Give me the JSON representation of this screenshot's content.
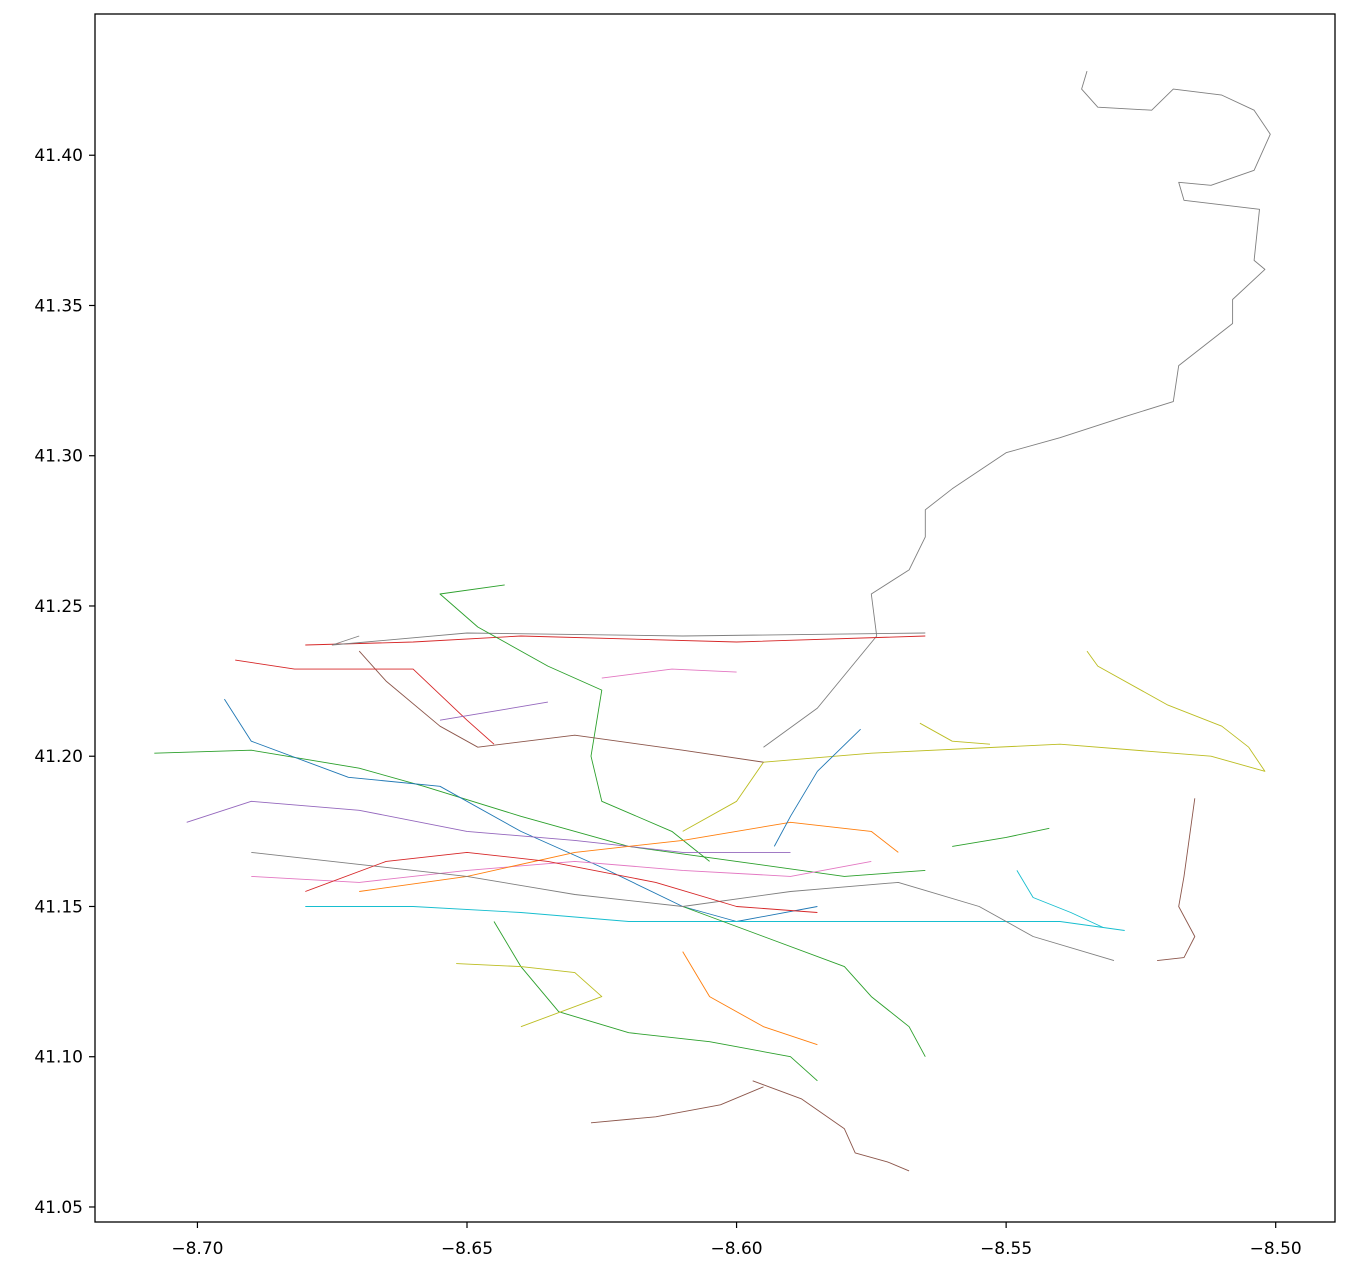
{
  "chart_data": {
    "type": "line",
    "title": "",
    "xlabel": "",
    "ylabel": "",
    "xlim": [
      -8.719,
      -8.489
    ],
    "ylim": [
      41.045,
      41.447
    ],
    "grid": false,
    "legend": "none",
    "x_ticks": [
      {
        "value": -8.7,
        "label": "−8.70"
      },
      {
        "value": -8.65,
        "label": "−8.65"
      },
      {
        "value": -8.6,
        "label": "−8.60"
      },
      {
        "value": -8.55,
        "label": "−8.55"
      },
      {
        "value": -8.5,
        "label": "−8.50"
      }
    ],
    "y_ticks": [
      {
        "value": 41.05,
        "label": "41.05"
      },
      {
        "value": 41.1,
        "label": "41.10"
      },
      {
        "value": 41.15,
        "label": "41.15"
      },
      {
        "value": 41.2,
        "label": "41.20"
      },
      {
        "value": 41.25,
        "label": "41.25"
      },
      {
        "value": 41.3,
        "label": "41.30"
      },
      {
        "value": 41.35,
        "label": "41.35"
      },
      {
        "value": 41.4,
        "label": "41.40"
      }
    ],
    "series": [
      {
        "color": "#7f7f7f",
        "points": [
          [
            -8.535,
            41.428
          ],
          [
            -8.536,
            41.422
          ],
          [
            -8.533,
            41.416
          ],
          [
            -8.523,
            41.415
          ],
          [
            -8.519,
            41.422
          ],
          [
            -8.51,
            41.42
          ],
          [
            -8.504,
            41.415
          ],
          [
            -8.501,
            41.407
          ],
          [
            -8.504,
            41.395
          ],
          [
            -8.512,
            41.39
          ],
          [
            -8.518,
            41.391
          ],
          [
            -8.517,
            41.385
          ],
          [
            -8.503,
            41.382
          ],
          [
            -8.504,
            41.365
          ],
          [
            -8.502,
            41.362
          ],
          [
            -8.508,
            41.352
          ],
          [
            -8.508,
            41.344
          ],
          [
            -8.518,
            41.33
          ],
          [
            -8.519,
            41.318
          ],
          [
            -8.528,
            41.313
          ],
          [
            -8.54,
            41.306
          ],
          [
            -8.55,
            41.301
          ],
          [
            -8.56,
            41.289
          ],
          [
            -8.565,
            41.282
          ],
          [
            -8.565,
            41.273
          ],
          [
            -8.568,
            41.262
          ],
          [
            -8.575,
            41.254
          ],
          [
            -8.574,
            41.24
          ],
          [
            -8.585,
            41.216
          ],
          [
            -8.595,
            41.203
          ]
        ]
      },
      {
        "color": "#8c564b",
        "points": [
          [
            -8.515,
            41.186
          ],
          [
            -8.516,
            41.173
          ],
          [
            -8.517,
            41.16
          ],
          [
            -8.518,
            41.15
          ],
          [
            -8.515,
            41.14
          ],
          [
            -8.517,
            41.133
          ],
          [
            -8.522,
            41.132
          ]
        ]
      },
      {
        "color": "#bcbd22",
        "points": [
          [
            -8.535,
            41.235
          ],
          [
            -8.533,
            41.23
          ],
          [
            -8.52,
            41.217
          ],
          [
            -8.51,
            41.21
          ],
          [
            -8.505,
            41.203
          ],
          [
            -8.502,
            41.195
          ],
          [
            -8.512,
            41.2
          ],
          [
            -8.54,
            41.204
          ],
          [
            -8.575,
            41.201
          ],
          [
            -8.595,
            41.198
          ],
          [
            -8.6,
            41.185
          ],
          [
            -8.61,
            41.175
          ]
        ]
      },
      {
        "color": "#d62728",
        "points": [
          [
            -8.565,
            41.24
          ],
          [
            -8.6,
            41.238
          ],
          [
            -8.64,
            41.24
          ],
          [
            -8.66,
            41.238
          ],
          [
            -8.68,
            41.237
          ]
        ]
      },
      {
        "color": "#7f7f7f",
        "points": [
          [
            -8.565,
            41.241
          ],
          [
            -8.61,
            41.24
          ],
          [
            -8.65,
            41.241
          ],
          [
            -8.675,
            41.237
          ],
          [
            -8.67,
            41.24
          ]
        ]
      },
      {
        "color": "#2ca02c",
        "points": [
          [
            -8.643,
            41.257
          ],
          [
            -8.655,
            41.254
          ],
          [
            -8.648,
            41.243
          ],
          [
            -8.635,
            41.23
          ],
          [
            -8.625,
            41.222
          ],
          [
            -8.627,
            41.2
          ],
          [
            -8.625,
            41.185
          ],
          [
            -8.612,
            41.175
          ],
          [
            -8.605,
            41.165
          ]
        ]
      },
      {
        "color": "#8c564b",
        "points": [
          [
            -8.595,
            41.198
          ],
          [
            -8.61,
            41.202
          ],
          [
            -8.63,
            41.207
          ],
          [
            -8.648,
            41.203
          ],
          [
            -8.655,
            41.21
          ],
          [
            -8.665,
            41.225
          ],
          [
            -8.67,
            41.235
          ]
        ]
      },
      {
        "color": "#2ca02c",
        "points": [
          [
            -8.708,
            41.201
          ],
          [
            -8.69,
            41.202
          ],
          [
            -8.67,
            41.196
          ],
          [
            -8.658,
            41.19
          ],
          [
            -8.64,
            41.18
          ],
          [
            -8.62,
            41.17
          ],
          [
            -8.6,
            41.165
          ],
          [
            -8.58,
            41.16
          ],
          [
            -8.565,
            41.162
          ]
        ]
      },
      {
        "color": "#1f77b4",
        "points": [
          [
            -8.695,
            41.219
          ],
          [
            -8.69,
            41.205
          ],
          [
            -8.672,
            41.193
          ],
          [
            -8.655,
            41.19
          ],
          [
            -8.64,
            41.175
          ],
          [
            -8.625,
            41.163
          ],
          [
            -8.61,
            41.15
          ],
          [
            -8.6,
            41.145
          ],
          [
            -8.585,
            41.15
          ]
        ]
      },
      {
        "color": "#d62728",
        "points": [
          [
            -8.693,
            41.232
          ],
          [
            -8.682,
            41.229
          ],
          [
            -8.66,
            41.229
          ],
          [
            -8.65,
            41.212
          ],
          [
            -8.645,
            41.204
          ]
        ]
      },
      {
        "color": "#9467bd",
        "points": [
          [
            -8.702,
            41.178
          ],
          [
            -8.69,
            41.185
          ],
          [
            -8.67,
            41.182
          ],
          [
            -8.65,
            41.175
          ],
          [
            -8.63,
            41.172
          ],
          [
            -8.61,
            41.168
          ],
          [
            -8.59,
            41.168
          ]
        ]
      },
      {
        "color": "#e377c2",
        "points": [
          [
            -8.69,
            41.16
          ],
          [
            -8.67,
            41.158
          ],
          [
            -8.65,
            41.162
          ],
          [
            -8.63,
            41.165
          ],
          [
            -8.61,
            41.162
          ],
          [
            -8.59,
            41.16
          ],
          [
            -8.575,
            41.165
          ]
        ]
      },
      {
        "color": "#17becf",
        "points": [
          [
            -8.68,
            41.15
          ],
          [
            -8.66,
            41.15
          ],
          [
            -8.64,
            41.148
          ],
          [
            -8.62,
            41.145
          ],
          [
            -8.6,
            41.145
          ],
          [
            -8.58,
            41.145
          ],
          [
            -8.56,
            41.145
          ],
          [
            -8.54,
            41.145
          ],
          [
            -8.528,
            41.142
          ]
        ]
      },
      {
        "color": "#ff7f0e",
        "points": [
          [
            -8.67,
            41.155
          ],
          [
            -8.65,
            41.16
          ],
          [
            -8.63,
            41.168
          ],
          [
            -8.61,
            41.172
          ],
          [
            -8.59,
            41.178
          ],
          [
            -8.575,
            41.175
          ],
          [
            -8.57,
            41.168
          ]
        ]
      },
      {
        "color": "#2ca02c",
        "points": [
          [
            -8.645,
            41.145
          ],
          [
            -8.64,
            41.13
          ],
          [
            -8.633,
            41.115
          ],
          [
            -8.62,
            41.108
          ],
          [
            -8.605,
            41.105
          ],
          [
            -8.59,
            41.1
          ],
          [
            -8.585,
            41.092
          ]
        ]
      },
      {
        "color": "#8c564b",
        "points": [
          [
            -8.597,
            41.092
          ],
          [
            -8.588,
            41.086
          ],
          [
            -8.58,
            41.076
          ],
          [
            -8.578,
            41.068
          ],
          [
            -8.572,
            41.065
          ],
          [
            -8.568,
            41.062
          ]
        ]
      },
      {
        "color": "#8c564b",
        "points": [
          [
            -8.627,
            41.078
          ],
          [
            -8.615,
            41.08
          ],
          [
            -8.603,
            41.084
          ],
          [
            -8.595,
            41.09
          ]
        ]
      },
      {
        "color": "#bcbd22",
        "points": [
          [
            -8.652,
            41.131
          ],
          [
            -8.64,
            41.13
          ],
          [
            -8.63,
            41.128
          ],
          [
            -8.625,
            41.12
          ],
          [
            -8.64,
            41.11
          ]
        ]
      },
      {
        "color": "#2ca02c",
        "points": [
          [
            -8.61,
            41.15
          ],
          [
            -8.595,
            41.14
          ],
          [
            -8.58,
            41.13
          ],
          [
            -8.575,
            41.12
          ],
          [
            -8.568,
            41.11
          ],
          [
            -8.565,
            41.1
          ]
        ]
      },
      {
        "color": "#7f7f7f",
        "points": [
          [
            -8.69,
            41.168
          ],
          [
            -8.67,
            41.164
          ],
          [
            -8.65,
            41.16
          ],
          [
            -8.63,
            41.154
          ],
          [
            -8.61,
            41.15
          ],
          [
            -8.59,
            41.155
          ],
          [
            -8.57,
            41.158
          ],
          [
            -8.555,
            41.15
          ],
          [
            -8.545,
            41.14
          ],
          [
            -8.53,
            41.132
          ]
        ]
      },
      {
        "color": "#d62728",
        "points": [
          [
            -8.68,
            41.155
          ],
          [
            -8.665,
            41.165
          ],
          [
            -8.65,
            41.168
          ],
          [
            -8.635,
            41.165
          ],
          [
            -8.615,
            41.158
          ],
          [
            -8.6,
            41.15
          ],
          [
            -8.585,
            41.148
          ]
        ]
      },
      {
        "color": "#1f77b4",
        "points": [
          [
            -8.577,
            41.209
          ],
          [
            -8.585,
            41.195
          ],
          [
            -8.59,
            41.18
          ],
          [
            -8.593,
            41.17
          ]
        ]
      },
      {
        "color": "#17becf",
        "points": [
          [
            -8.548,
            41.162
          ],
          [
            -8.545,
            41.153
          ],
          [
            -8.538,
            41.148
          ],
          [
            -8.532,
            41.143
          ]
        ]
      },
      {
        "color": "#bcbd22",
        "points": [
          [
            -8.566,
            41.211
          ],
          [
            -8.56,
            41.205
          ],
          [
            -8.553,
            41.204
          ]
        ]
      },
      {
        "color": "#9467bd",
        "points": [
          [
            -8.655,
            41.212
          ],
          [
            -8.645,
            41.215
          ],
          [
            -8.635,
            41.218
          ]
        ]
      },
      {
        "color": "#e377c2",
        "points": [
          [
            -8.625,
            41.226
          ],
          [
            -8.612,
            41.229
          ],
          [
            -8.6,
            41.228
          ]
        ]
      },
      {
        "color": "#2ca02c",
        "points": [
          [
            -8.56,
            41.17
          ],
          [
            -8.55,
            41.173
          ],
          [
            -8.542,
            41.176
          ]
        ]
      },
      {
        "color": "#ff7f0e",
        "points": [
          [
            -8.61,
            41.135
          ],
          [
            -8.605,
            41.12
          ],
          [
            -8.595,
            41.11
          ],
          [
            -8.585,
            41.104
          ]
        ]
      }
    ]
  }
}
